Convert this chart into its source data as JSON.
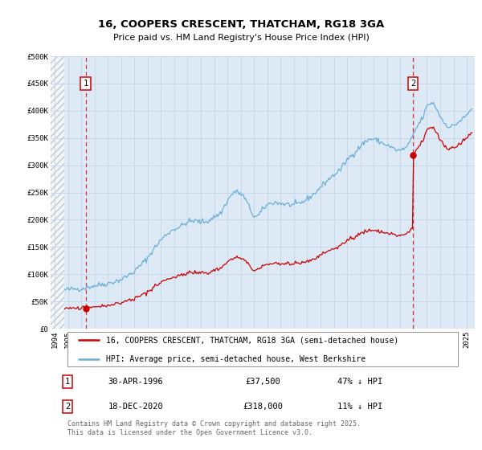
{
  "title": "16, COOPERS CRESCENT, THATCHAM, RG18 3GA",
  "subtitle": "Price paid vs. HM Land Registry's House Price Index (HPI)",
  "ylim": [
    0,
    500000
  ],
  "yticks": [
    0,
    50000,
    100000,
    150000,
    200000,
    250000,
    300000,
    350000,
    400000,
    450000,
    500000
  ],
  "ytick_labels": [
    "£0",
    "£50K",
    "£100K",
    "£150K",
    "£200K",
    "£250K",
    "£300K",
    "£350K",
    "£400K",
    "£450K",
    "£500K"
  ],
  "xlim_start": 1993.7,
  "xlim_end": 2025.6,
  "data_start": 1994.75,
  "xticks": [
    1994,
    1995,
    1996,
    1997,
    1998,
    1999,
    2000,
    2001,
    2002,
    2003,
    2004,
    2005,
    2006,
    2007,
    2008,
    2009,
    2010,
    2011,
    2012,
    2013,
    2014,
    2015,
    2016,
    2017,
    2018,
    2019,
    2020,
    2021,
    2022,
    2023,
    2024,
    2025
  ],
  "transaction1_date": 1996.33,
  "transaction1_price": 37500,
  "transaction1_label": "1",
  "transaction1_text": "30-APR-1996",
  "transaction1_price_text": "£37,500",
  "transaction1_hpi_text": "47% ↓ HPI",
  "transaction2_date": 2020.96,
  "transaction2_price": 318000,
  "transaction2_label": "2",
  "transaction2_text": "18-DEC-2020",
  "transaction2_price_text": "£318,000",
  "transaction2_hpi_text": "11% ↓ HPI",
  "hpi_color": "#6baed6",
  "price_color": "#cc0000",
  "vline_color": "#dd3333",
  "grid_color": "#c8d8eb",
  "bg_color": "#ffffff",
  "plot_bg_color": "#ddeaf5",
  "hatch_color": "#bbbbbb",
  "legend_label1": "16, COOPERS CRESCENT, THATCHAM, RG18 3GA (semi-detached house)",
  "legend_label2": "HPI: Average price, semi-detached house, West Berkshire",
  "footer_text": "Contains HM Land Registry data © Crown copyright and database right 2025.\nThis data is licensed under the Open Government Licence v3.0.",
  "title_fontsize": 9.5,
  "subtitle_fontsize": 8,
  "tick_fontsize": 6.5,
  "legend_fontsize": 7,
  "footer_fontsize": 6,
  "label_fontsize": 7.5
}
